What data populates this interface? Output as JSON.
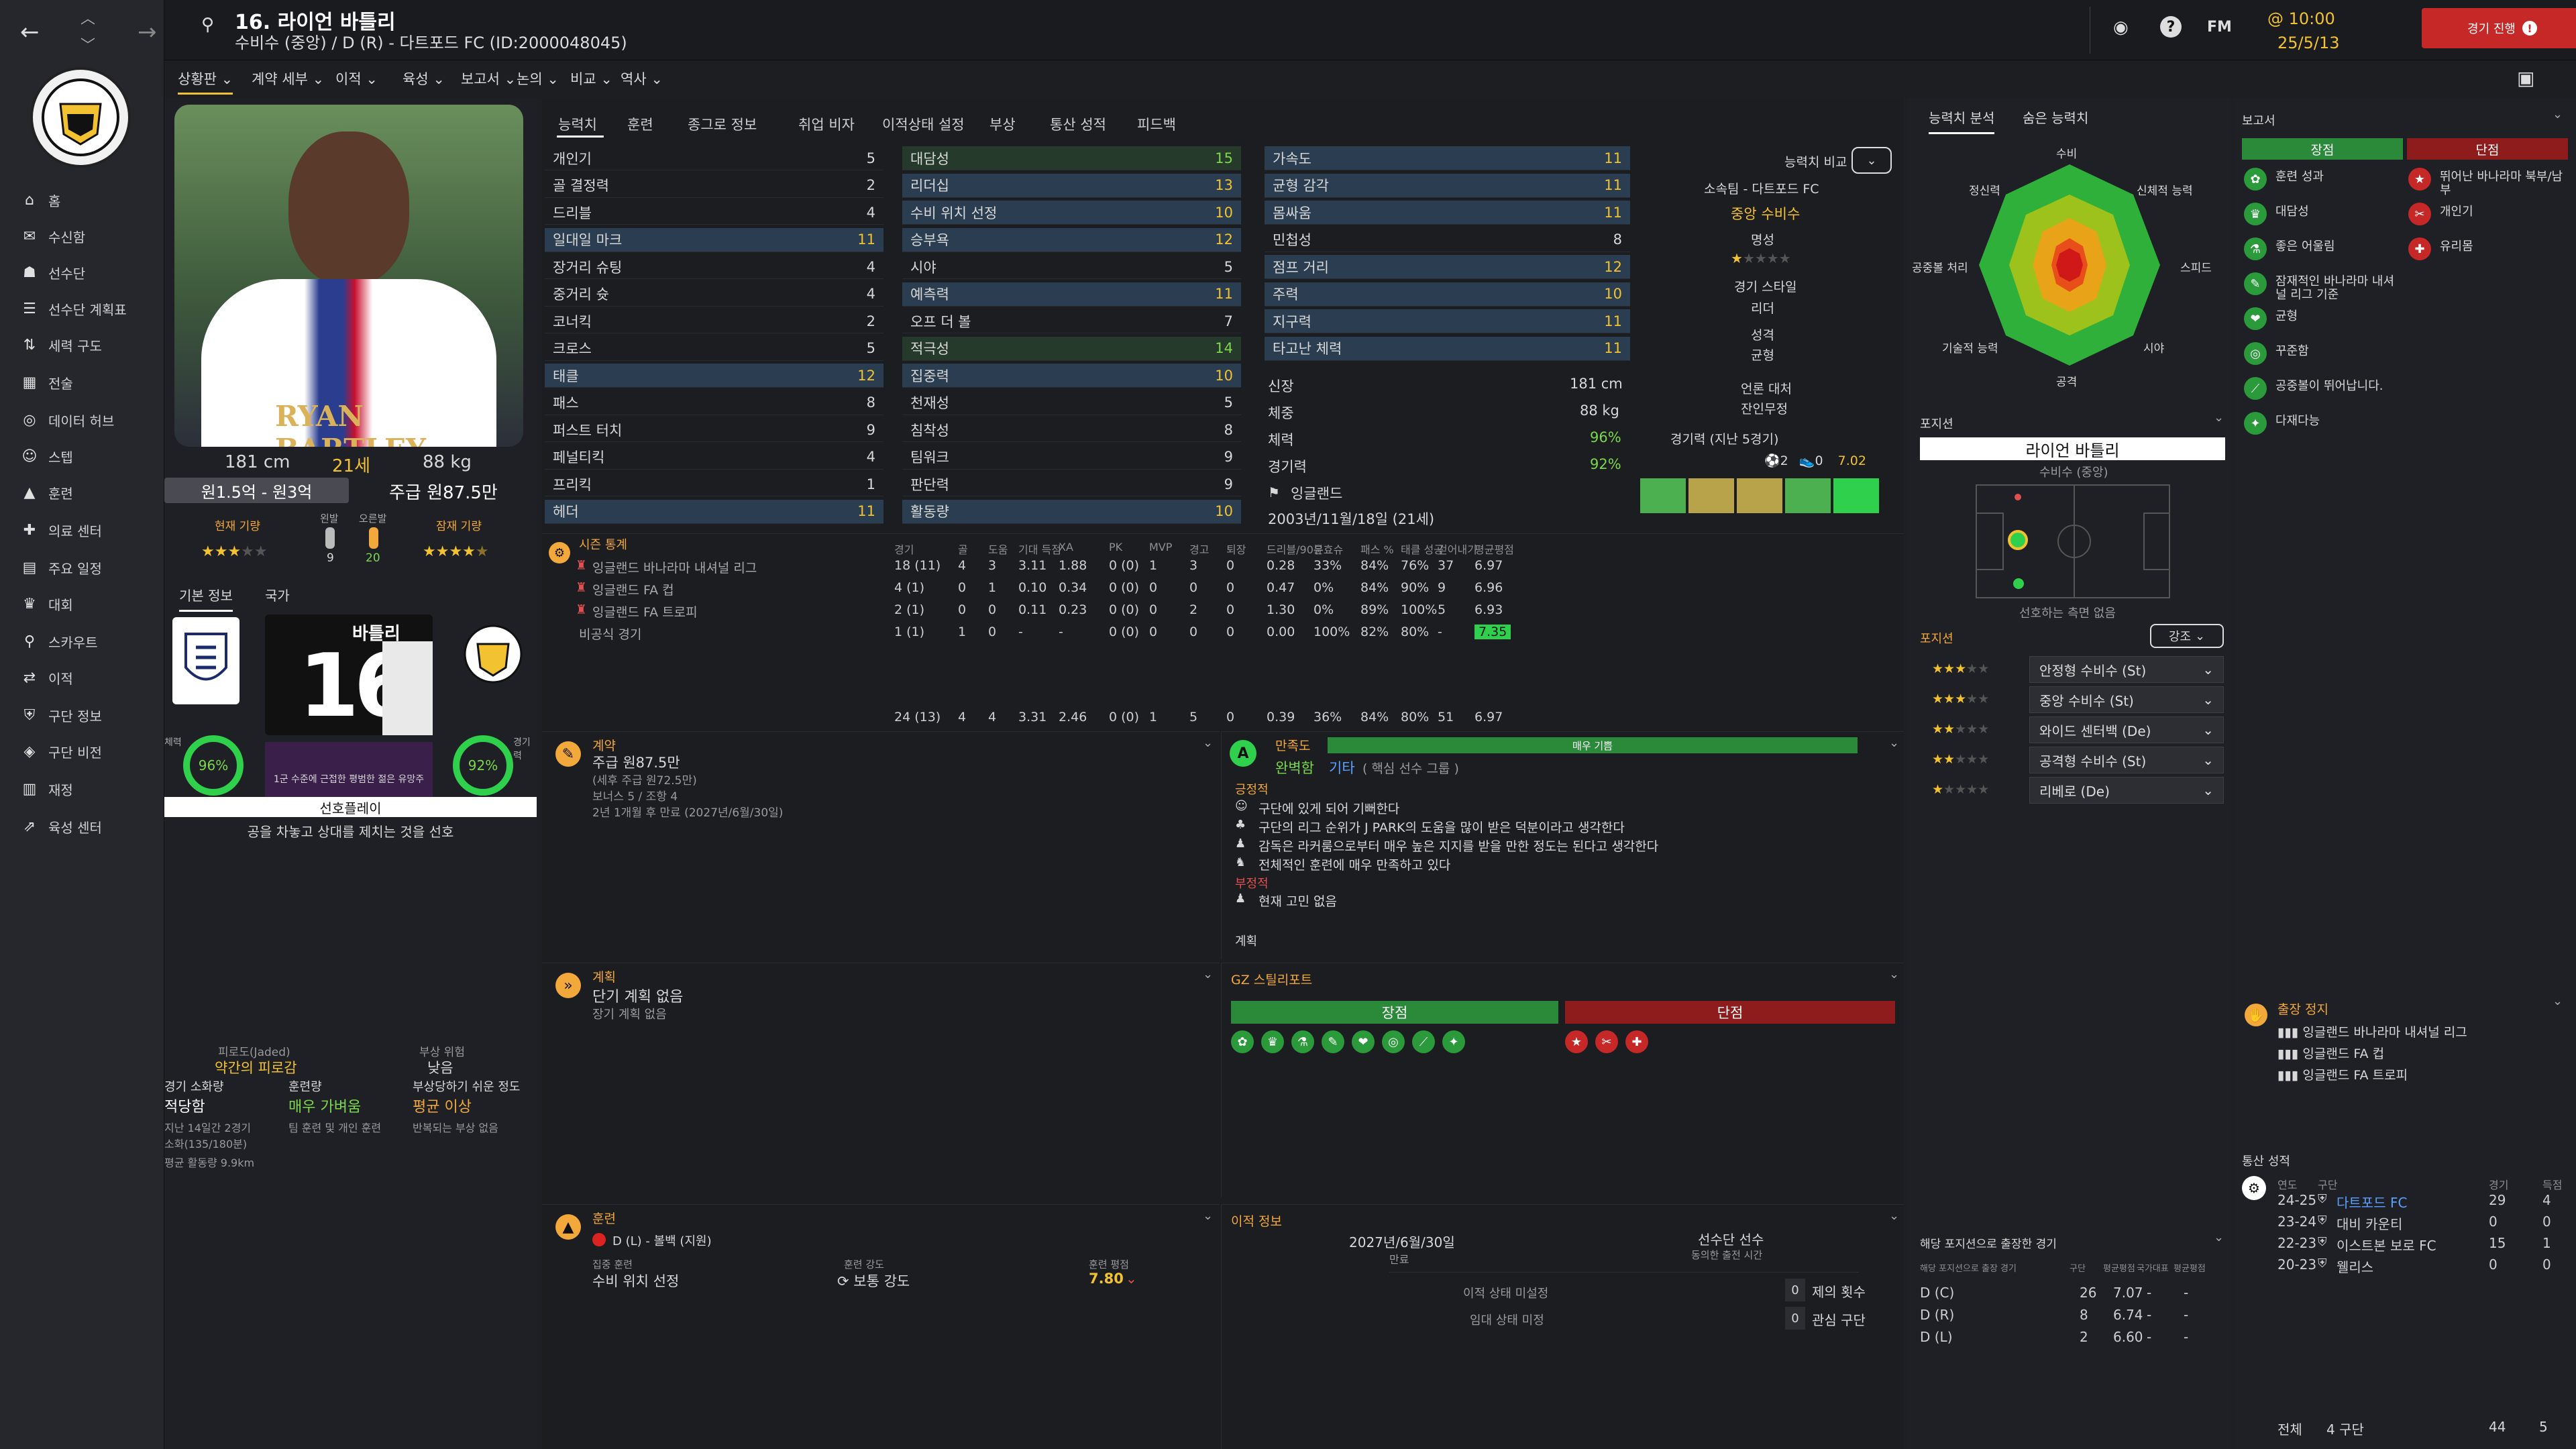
{
  "header": {
    "title": "16. 라이언 바틀리",
    "subtitle": "수비수 (중앙) / D (R) - 다트포드 FC (ID:2000048045)",
    "time": "@ 10:00",
    "date": "25/5/13",
    "continue_label": "경기 진행",
    "fm_label": "FM"
  },
  "subnav": [
    "상황판",
    "계약 세부",
    "이적",
    "육성",
    "보고서",
    "논의",
    "비교",
    "역사"
  ],
  "sidebar": [
    "홈",
    "수신함",
    "선수단",
    "선수단 계획표",
    "세력 구도",
    "전술",
    "데이터 허브",
    "스텝",
    "훈련",
    "의료 센터",
    "주요 일정",
    "대회",
    "스카우트",
    "이적",
    "구단 정보",
    "구단 비전",
    "재정",
    "육성 센터"
  ],
  "player": {
    "height": "181 cm",
    "age": "21세",
    "weight": "88 kg",
    "value": "원1.5억 - 원3억",
    "wage_label": "주급 원87.5만",
    "current_ability_label": "현재 기량",
    "potential_label": "잠재 기량",
    "left_foot_label": "왼발",
    "right_foot_label": "오른발",
    "left_foot": "9",
    "right_foot": "20",
    "shirt_name": "RYAN BARTLEY",
    "shirt_number": "16",
    "shirt_short_name": "바틀리",
    "tab_basic": "기본 정보",
    "tab_nation": "국가",
    "fitness_label": "체력",
    "fitness": "96%",
    "sharpness_label": "경기력",
    "sharpness": "92%",
    "condition_note": "1군 수준에 근접한 평범한 젊은 유망주",
    "role_label": "선호플레이",
    "role_desc": "공을 차놓고 상대를 제치는 것을 선호"
  },
  "tiredness": {
    "label": "피로도(Jaded)",
    "value": "약간의 피로감",
    "risk_label": "부상 위험",
    "risk_value": "낮음",
    "load_label": "경기 소화량",
    "load_value": "적당함",
    "training_label": "훈련량",
    "training_value": "매우 가벼움",
    "injury_label": "부상당하기 쉬운 정도",
    "injury_value": "평균 이상",
    "note1": "지난 14일간 2경기",
    "note2": "소화(135/180분)",
    "note3": "평균 활동량 9.9km",
    "note4": "팀 훈련 및 개인 훈련",
    "note5": "반복되는 부상 없음"
  },
  "tabs": [
    "능력치",
    "훈련",
    "종그로 정보",
    "취업 비자",
    "이적상태 설정",
    "부상",
    "통산 성적",
    "피드백"
  ],
  "attrs": {
    "technical": [
      [
        "개인기",
        "5"
      ],
      [
        "골 결정력",
        "2"
      ],
      [
        "드리블",
        "4"
      ],
      [
        "일대일 마크",
        "11"
      ],
      [
        "장거리 슈팅",
        "4"
      ],
      [
        "중거리 슛",
        "4"
      ],
      [
        "코너킥",
        "2"
      ],
      [
        "크로스",
        "5"
      ],
      [
        "태클",
        "12"
      ],
      [
        "패스",
        "8"
      ],
      [
        "퍼스트 터치",
        "9"
      ],
      [
        "페널티킥",
        "4"
      ],
      [
        "프리킥",
        "1"
      ],
      [
        "헤더",
        "11"
      ]
    ],
    "mental": [
      [
        "대담성",
        "15"
      ],
      [
        "리더십",
        "13"
      ],
      [
        "수비 위치 선정",
        "10"
      ],
      [
        "승부욕",
        "12"
      ],
      [
        "시야",
        "5"
      ],
      [
        "예측력",
        "11"
      ],
      [
        "오프 더 볼",
        "7"
      ],
      [
        "적극성",
        "14"
      ],
      [
        "집중력",
        "10"
      ],
      [
        "천재성",
        "5"
      ],
      [
        "침착성",
        "8"
      ],
      [
        "팀워크",
        "9"
      ],
      [
        "판단력",
        "9"
      ],
      [
        "활동량",
        "10"
      ]
    ],
    "physical": [
      [
        "가속도",
        "11"
      ],
      [
        "균형 감각",
        "11"
      ],
      [
        "몸싸움",
        "11"
      ],
      [
        "민첩성",
        "8"
      ],
      [
        "점프 거리",
        "12"
      ],
      [
        "주력",
        "10"
      ],
      [
        "지구력",
        "11"
      ],
      [
        "타고난 체력",
        "11"
      ]
    ]
  },
  "bio": {
    "height_label": "신장",
    "height": "181 cm",
    "weight_label": "체중",
    "weight": "88 kg",
    "fitness_label": "체력",
    "fitness": "96%",
    "sharpness_label": "경기력",
    "sharpness": "92%",
    "nation": "잉글랜드",
    "dob": "2003년/11월/18일 (21세)",
    "compare_label": "능력치 비교",
    "club_label": "소속팀 - 다트포드 FC",
    "pos_label": "중앙 수비수",
    "rep_label": "명성",
    "style_label": "경기 스타일",
    "style_value": "리더",
    "char_label": "성격",
    "char_value": "균형",
    "media_label": "언론 대처",
    "media_value": "잔인무정",
    "form_label": "경기력 (지난 5경기)",
    "form_goals": "2",
    "form_assists": "0",
    "form_rating": "7.02"
  },
  "stats": {
    "header_label": "시즌 통계",
    "cols": [
      "경기",
      "골",
      "도움",
      "기대 득점",
      "XA",
      "PK",
      "MVP",
      "경고",
      "퇴장",
      "드리블/90분",
      "유효슈",
      "패스 %",
      "태클 성공",
      "걷어내기",
      "평균평점"
    ],
    "rows": [
      [
        "잉글랜드 바나라마 내셔널 리그",
        "18 (11)",
        "4",
        "3",
        "3.11",
        "1.88",
        "0 (0)",
        "1",
        "3",
        "0",
        "0.28",
        "33%",
        "84%",
        "76%",
        "37",
        "6.97"
      ],
      [
        "잉글랜드 FA 컵",
        "4 (1)",
        "0",
        "1",
        "0.10",
        "0.34",
        "0 (0)",
        "0",
        "0",
        "0",
        "0.47",
        "0%",
        "84%",
        "90%",
        "9",
        "6.96"
      ],
      [
        "잉글랜드 FA 트로피",
        "2 (1)",
        "0",
        "0",
        "0.11",
        "0.23",
        "0 (0)",
        "0",
        "2",
        "0",
        "1.30",
        "0%",
        "89%",
        "100%",
        "5",
        "6.93"
      ],
      [
        "비공식 경기",
        "1 (1)",
        "1",
        "0",
        "-",
        "-",
        "0 (0)",
        "0",
        "0",
        "0",
        "0.00",
        "100%",
        "82%",
        "80%",
        "-",
        "7.35"
      ]
    ],
    "total": [
      "24 (13)",
      "4",
      "4",
      "3.31",
      "2.46",
      "0 (0)",
      "1",
      "5",
      "0",
      "0.39",
      "36%",
      "84%",
      "80%",
      "51",
      "6.97"
    ]
  },
  "contract": {
    "label": "계약",
    "wage": "주급 원87.5만",
    "wage_note": "(세후 주급 원72.5만)",
    "bonus": "보너스 5 / 조항 4",
    "expiry": "2년 1개월 후 만료 (2027년/6월/30일)"
  },
  "happiness": {
    "label": "만족도",
    "level": "매우 기쁨",
    "status": "완벽함",
    "role": "기타",
    "role_note": "( 핵심 선수 그룹 )",
    "pos_label": "긍정적",
    "pos": [
      "구단에 있게 되어 기뻐한다",
      "구단의 리그 순위가 J PARK의 도움을 많이 받은 덕분이라고 생각한다",
      "감독은 라커룸으로부터 매우 높은 지지를 받을 만한 정도는 된다고 생각한다",
      "전체적인 훈련에 매우 만족하고 있다"
    ],
    "neg_label": "부정적",
    "neg": [
      "현재 고민 없음"
    ],
    "plan_label": "계획"
  },
  "plans": {
    "label": "계획",
    "short": "단기 계획 없음",
    "long": "장기 계획 없음"
  },
  "gz": {
    "label": "GZ 스틸리포트",
    "pros": "장점",
    "cons": "단점"
  },
  "training": {
    "label": "훈련",
    "position": "D (L) - 볼백 (지원)",
    "focus_label": "집중 훈련",
    "focus": "수비 위치 선정",
    "intensity_label": "훈련 강도",
    "intensity": "보통 강도",
    "rating_label": "훈련 평점",
    "rating": "7.80"
  },
  "transfer": {
    "label": "이적 정보",
    "contract_end": "2027년/6월/30일",
    "contract_end_label": "만료",
    "squad_label": "선수단 선수",
    "squad_note": "동의한 출전 시간",
    "status1": "이적 상태 미설정",
    "status2": "임대 상태 미정",
    "offers_label": "제의 횟수",
    "offers": "0",
    "interest_label": "관심 구단",
    "interest": "0"
  },
  "analysis": {
    "tab1": "능력치 분석",
    "tab2": "숨은 능력치",
    "axes": [
      "수비",
      "신체적 능력",
      "스피드",
      "시야",
      "공격",
      "기술적 능력",
      "공중볼 처리",
      "정신력"
    ]
  },
  "position_box": {
    "label": "포지션",
    "name": "라이언 바틀리",
    "role": "수비수 (중앙)",
    "note": "선호하는 측면 없음",
    "label2": "포지션",
    "strong_label": "강조"
  },
  "roles": [
    [
      "안정형 수비수 (St)",
      3
    ],
    [
      "중앙 수비수 (St)",
      3
    ],
    [
      "와이드 센터백 (De)",
      2
    ],
    [
      "공격형 수비수 (St)",
      2
    ],
    [
      "리베로 (De)",
      1
    ]
  ],
  "pos_games": {
    "label": "해당 포지션으로 출장한 경기",
    "cols": [
      "해당 포지션으로 출장 경기",
      "구단",
      "평균평점",
      "국가대표",
      "평균평점"
    ],
    "rows": [
      [
        "D (C)",
        "26",
        "7.07",
        "-",
        "-"
      ],
      [
        "D (R)",
        "8",
        "6.74",
        "-",
        "-"
      ],
      [
        "D (L)",
        "2",
        "6.60",
        "-",
        "-"
      ]
    ]
  },
  "report": {
    "label": "보고서",
    "pros_label": "장점",
    "cons_label": "단점",
    "pros": [
      "훈련 성과",
      "대담성",
      "좋은 어울림",
      "잠재적인 바나라마 내셔널 리그 기준",
      "균형",
      "꾸준함",
      "공중볼이 뛰어납니다.",
      "다재다능"
    ],
    "cons": [
      "뛰어난 바나라마 북부/남부",
      "개인기",
      "유리몸"
    ]
  },
  "suspension": {
    "label": "출장 정지",
    "items": [
      "잉글랜드 바나라마 내셔널 리그",
      "잉글랜드 FA 컵",
      "잉글랜드 FA 트로피"
    ]
  },
  "career": {
    "label": "통산 성적",
    "cols": [
      "연도",
      "구단",
      "경기",
      "득점"
    ],
    "rows": [
      [
        "24-25",
        "다트포드 FC",
        "29",
        "4"
      ],
      [
        "23-24",
        "대비 카운티",
        "0",
        "0"
      ],
      [
        "22-23",
        "이스트본 보로 FC",
        "15",
        "1"
      ],
      [
        "20-23",
        "웰리스",
        "0",
        "0"
      ]
    ],
    "total_label": "전체",
    "total_clubs": "4 구단",
    "total_apps": "44",
    "total_goals": "5"
  },
  "colors": {
    "accent": "#f2c230",
    "green": "#7bd84a",
    "panel": "#1f2025",
    "red_btn": "#c62828"
  }
}
